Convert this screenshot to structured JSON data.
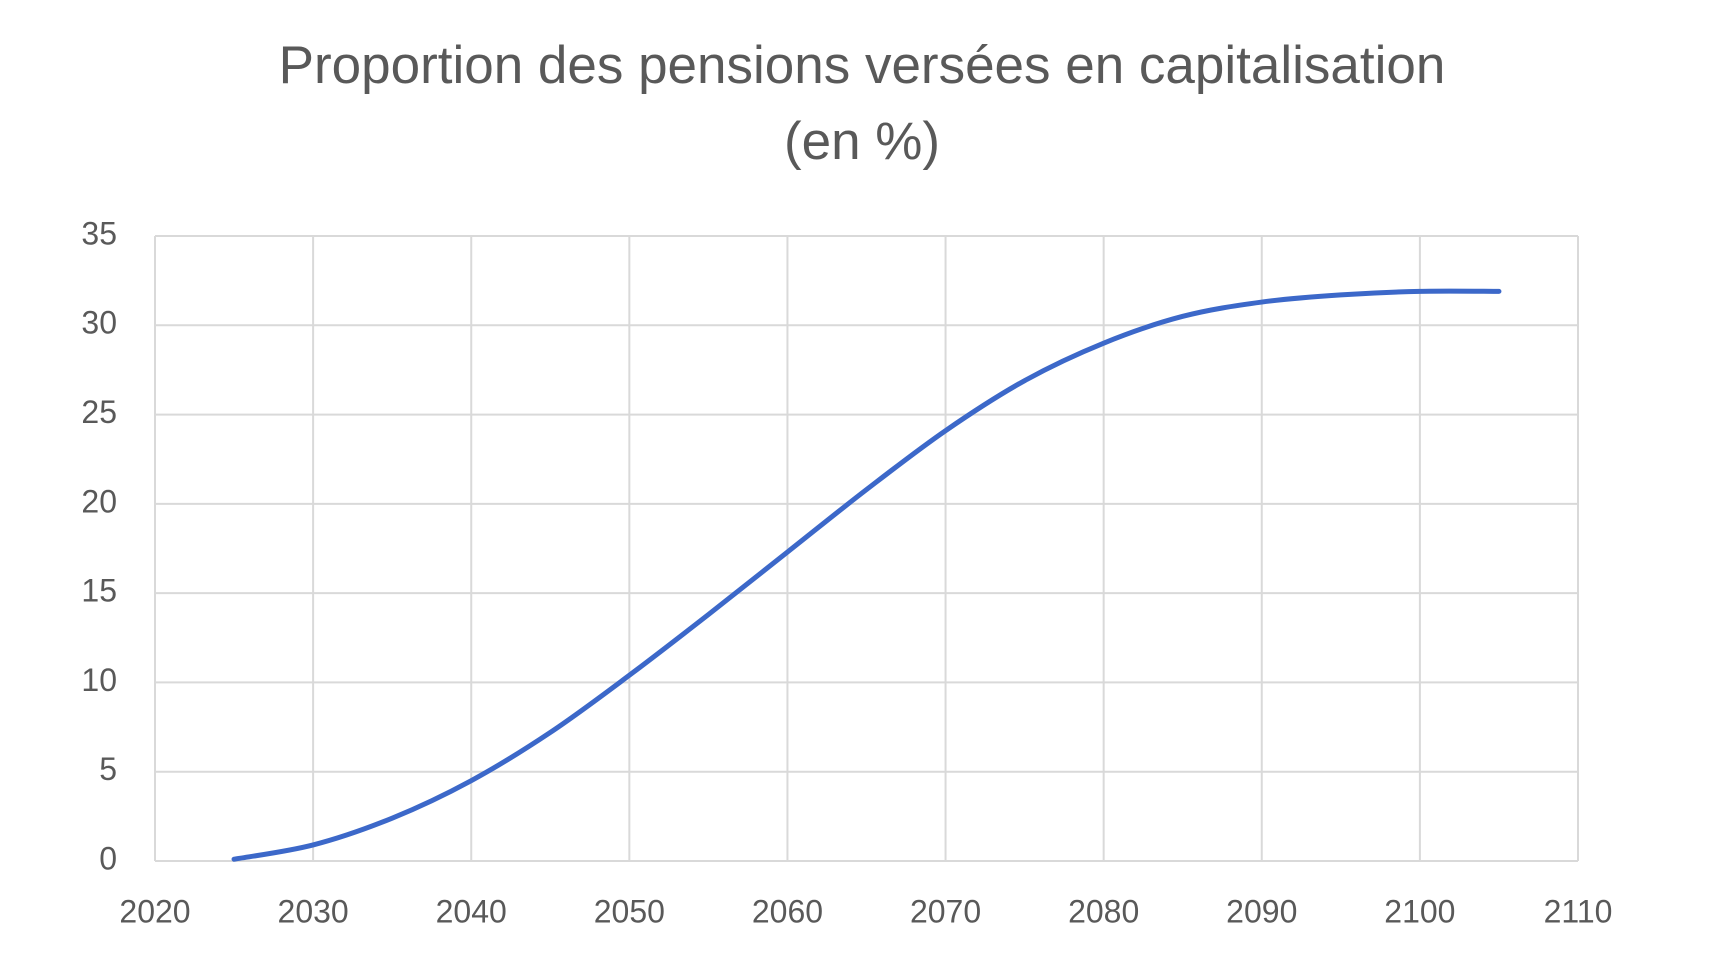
{
  "chart_data": {
    "type": "line",
    "title": [
      "Proportion des pensions versées en capitalisation",
      "(en %)"
    ],
    "x": [
      2025,
      2030,
      2035,
      2040,
      2045,
      2050,
      2055,
      2060,
      2065,
      2070,
      2075,
      2080,
      2085,
      2090,
      2095,
      2100,
      2105
    ],
    "series": [
      {
        "color": "#3c68c9",
        "values": [
          0.1,
          0.9,
          2.4,
          4.5,
          7.2,
          10.4,
          13.8,
          17.3,
          20.8,
          24.1,
          26.9,
          29.0,
          30.5,
          31.3,
          31.7,
          31.9,
          31.9
        ]
      }
    ],
    "xlim": [
      2020,
      2110
    ],
    "xticks": [
      2020,
      2030,
      2040,
      2050,
      2060,
      2070,
      2080,
      2090,
      2100,
      2110
    ],
    "ylim": [
      0,
      35
    ],
    "yticks": [
      0,
      5,
      10,
      15,
      20,
      25,
      30,
      35
    ],
    "grid": true
  }
}
